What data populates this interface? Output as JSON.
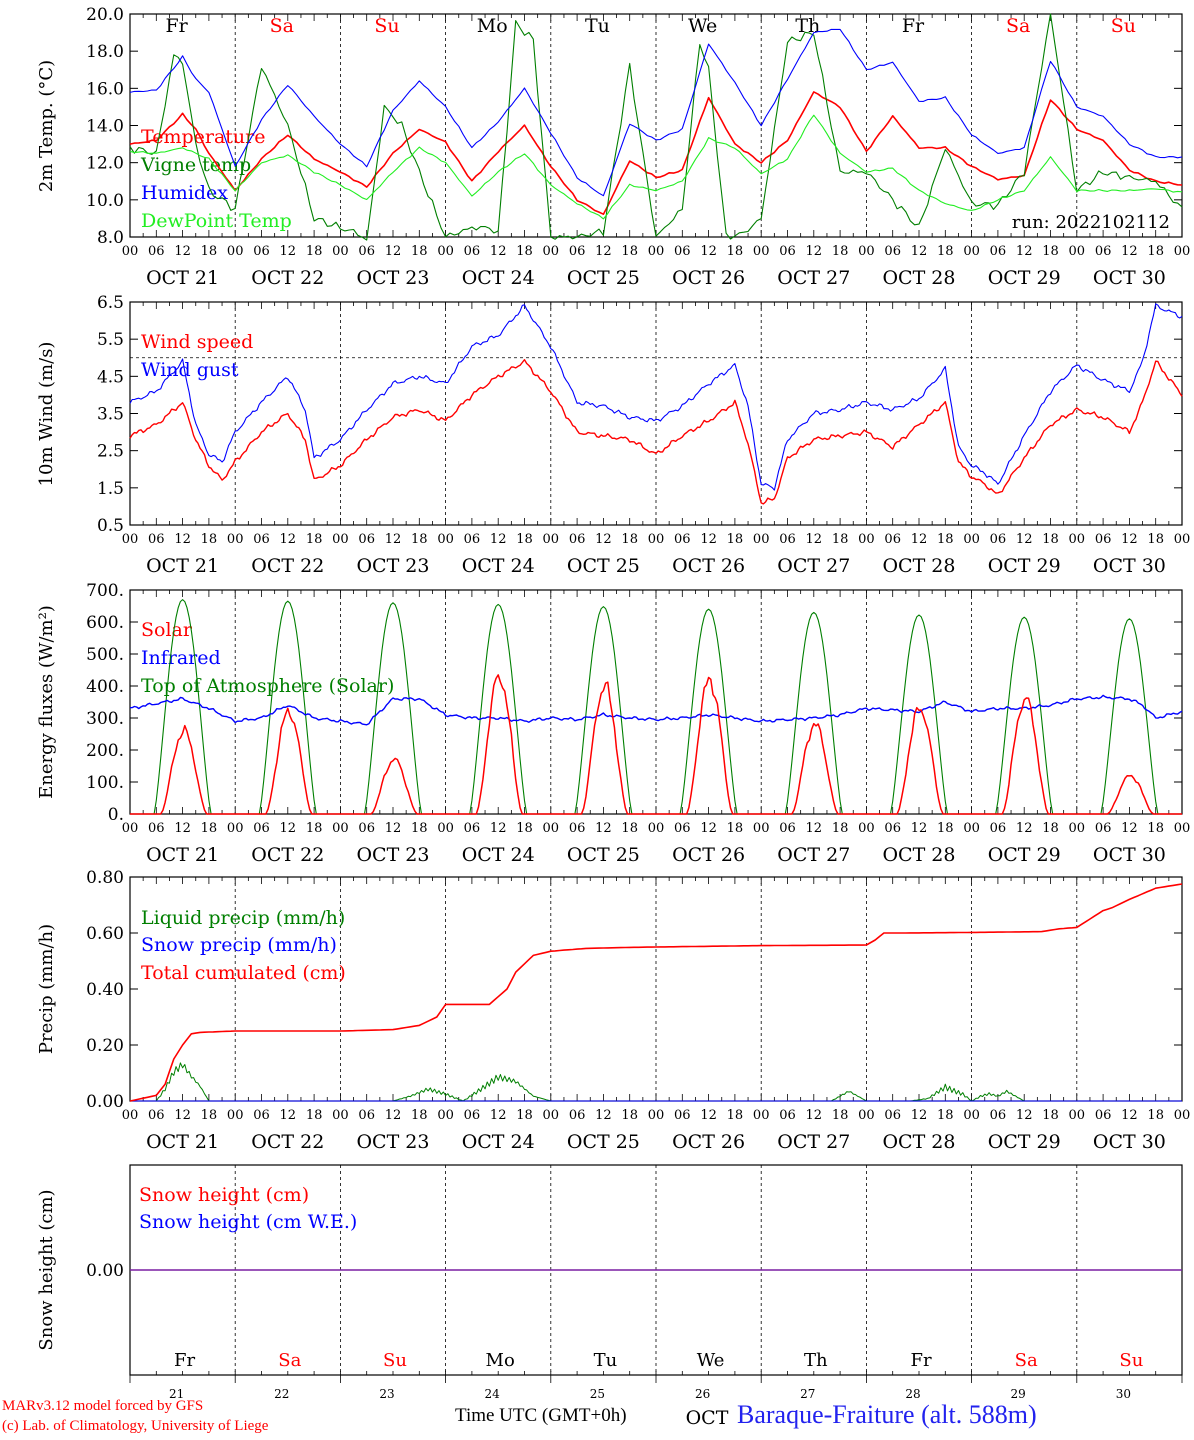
{
  "run_label": "run: 2022102112",
  "footer": {
    "model_credit": "MARv3.12 model forced by GFS",
    "lab_credit": "(c) Lab. of Climatology, University of Liege",
    "x_axis_title": "Time UTC (GMT+0h)",
    "month_label": "OCT",
    "station": "Baraque-Fraiture (alt. 588m)"
  },
  "colors": {
    "red": "#ff0000",
    "green": "#007f00",
    "blue": "#0000ff",
    "light_green": "#22ee22",
    "purple": "#7a1fa2",
    "weekend": "#ff0000",
    "weekday": "#000000"
  },
  "time_axis": {
    "hour_labels": [
      "00",
      "06",
      "12",
      "18"
    ],
    "date_labels": [
      "OCT 21",
      "OCT 22",
      "OCT 23",
      "OCT 24",
      "OCT 25",
      "OCT 26",
      "OCT 27",
      "OCT 28",
      "OCT 29",
      "OCT 30"
    ],
    "day_names": [
      "Fr",
      "Sa",
      "Su",
      "Mo",
      "Tu",
      "We",
      "Th",
      "Fr",
      "Sa",
      "Su"
    ],
    "weekend": [
      false,
      true,
      true,
      false,
      false,
      false,
      false,
      false,
      true,
      true
    ],
    "day_numbers": [
      "21",
      "22",
      "23",
      "24",
      "25",
      "26",
      "27",
      "28",
      "29",
      "30"
    ]
  },
  "chart_data": [
    {
      "type": "line",
      "ylabel": "2m Temp. (°C)",
      "ylim": [
        8.0,
        20.0
      ],
      "yticks": [
        "8.0",
        "10.0",
        "12.0",
        "14.0",
        "16.0",
        "18.0",
        "20.0"
      ],
      "x_unit": "hours since 2022-10-21 00 UTC",
      "series": [
        {
          "name": "Temperature",
          "color": "#ff0000",
          "x": [
            0,
            6,
            12,
            15,
            18,
            24,
            30,
            36,
            42,
            48,
            54,
            60,
            66,
            72,
            78,
            84,
            90,
            96,
            102,
            108,
            114,
            120,
            126,
            132,
            138,
            144,
            150,
            156,
            162,
            168,
            174,
            180,
            186,
            192,
            198,
            204,
            210,
            216,
            222,
            228,
            234,
            240
          ],
          "y": [
            13.0,
            13.2,
            14.6,
            13.8,
            12.5,
            10.5,
            12.2,
            13.5,
            12.2,
            11.5,
            10.7,
            12.5,
            13.8,
            13.1,
            11.0,
            12.6,
            14.0,
            11.8,
            10.0,
            9.2,
            12.1,
            11.2,
            11.6,
            15.5,
            13.0,
            12.0,
            13.2,
            15.8,
            15.0,
            12.6,
            14.5,
            12.8,
            12.8,
            11.8,
            11.1,
            11.3,
            15.4,
            13.8,
            13.2,
            11.6,
            11.0,
            10.8
          ]
        },
        {
          "name": "Vigne temp",
          "color": "#007f00",
          "x": [
            0,
            6,
            10,
            12,
            15,
            18,
            24,
            30,
            36,
            42,
            48,
            52,
            54,
            58,
            62,
            66,
            72,
            78,
            82,
            84,
            88,
            92,
            96,
            102,
            108,
            114,
            116,
            120,
            126,
            130,
            132,
            136,
            140,
            144,
            150,
            156,
            162,
            168,
            174,
            180,
            186,
            192,
            198,
            204,
            210,
            216,
            222,
            228,
            234,
            240
          ],
          "y": [
            12.8,
            12.5,
            17.8,
            17.4,
            13.0,
            10.5,
            9.5,
            17.2,
            14.0,
            9.0,
            8.5,
            8.2,
            7.8,
            15.0,
            14.0,
            11.5,
            8.0,
            8.5,
            8.5,
            8.2,
            19.5,
            18.6,
            8.0,
            8.0,
            8.3,
            17.2,
            14.0,
            8.0,
            9.5,
            18.5,
            17.0,
            8.0,
            8.2,
            9.0,
            18.5,
            19.0,
            11.5,
            11.5,
            10.0,
            8.5,
            12.8,
            9.8,
            9.7,
            11.5,
            20.0,
            10.5,
            11.5,
            11.2,
            11.0,
            9.5
          ]
        },
        {
          "name": "Humidex",
          "color": "#0000ff",
          "x": [
            0,
            6,
            12,
            15,
            18,
            24,
            30,
            36,
            42,
            48,
            54,
            60,
            66,
            72,
            78,
            84,
            90,
            96,
            102,
            108,
            114,
            120,
            126,
            132,
            138,
            144,
            150,
            156,
            162,
            168,
            174,
            180,
            186,
            192,
            198,
            204,
            210,
            216,
            222,
            228,
            234,
            240
          ],
          "y": [
            15.8,
            15.9,
            17.7,
            16.5,
            15.8,
            11.8,
            14.3,
            16.2,
            14.5,
            13.0,
            11.8,
            14.8,
            16.4,
            15.0,
            12.8,
            14.2,
            16.0,
            13.6,
            11.2,
            10.2,
            14.1,
            13.2,
            13.8,
            18.4,
            16.3,
            14.0,
            16.5,
            19.0,
            19.2,
            17.0,
            17.4,
            15.3,
            15.5,
            13.5,
            12.5,
            12.8,
            17.5,
            15.0,
            14.5,
            13.0,
            12.3,
            12.3
          ]
        },
        {
          "name": "DewPoint Temp",
          "color": "#22ee22",
          "x": [
            0,
            6,
            12,
            18,
            24,
            30,
            36,
            42,
            48,
            54,
            60,
            66,
            72,
            78,
            84,
            90,
            96,
            102,
            108,
            114,
            120,
            126,
            132,
            138,
            144,
            150,
            156,
            162,
            168,
            174,
            180,
            186,
            192,
            198,
            204,
            210,
            216,
            222,
            228,
            234,
            240
          ],
          "y": [
            12.6,
            12.5,
            12.8,
            12.2,
            10.5,
            12.0,
            12.4,
            11.5,
            10.8,
            10.0,
            11.5,
            12.8,
            12.0,
            10.2,
            11.5,
            12.5,
            10.8,
            9.8,
            9.0,
            10.8,
            10.5,
            11.0,
            13.3,
            12.8,
            11.4,
            12.2,
            14.6,
            12.5,
            11.5,
            11.7,
            10.5,
            9.8,
            9.4,
            10.0,
            10.5,
            12.3,
            10.5,
            10.5,
            10.5,
            10.6,
            10.4
          ]
        }
      ]
    },
    {
      "type": "line",
      "ylabel": "10m Wind (m/s)",
      "ylim": [
        0.5,
        6.5
      ],
      "yticks": [
        "0.5",
        "1.5",
        "2.5",
        "3.5",
        "4.5",
        "5.5",
        "6.5"
      ],
      "reference_line": 5.0,
      "series": [
        {
          "name": "Wind speed",
          "color": "#ff0000",
          "x": [
            0,
            6,
            12,
            15,
            18,
            21,
            24,
            30,
            36,
            40,
            42,
            48,
            54,
            60,
            66,
            72,
            78,
            84,
            90,
            96,
            102,
            108,
            114,
            120,
            126,
            132,
            138,
            141,
            144,
            147,
            150,
            156,
            162,
            168,
            174,
            180,
            186,
            189,
            192,
            195,
            198,
            204,
            210,
            216,
            222,
            228,
            231,
            234,
            240
          ],
          "y": [
            2.9,
            3.2,
            3.8,
            2.8,
            2.1,
            1.7,
            2.2,
            3.0,
            3.5,
            2.8,
            1.7,
            2.1,
            2.8,
            3.4,
            3.6,
            3.3,
            4.0,
            4.5,
            4.9,
            4.1,
            3.0,
            2.9,
            2.8,
            2.4,
            2.9,
            3.3,
            3.8,
            2.7,
            1.1,
            1.2,
            2.3,
            2.8,
            2.9,
            3.0,
            2.6,
            3.2,
            3.8,
            2.2,
            1.8,
            1.6,
            1.3,
            2.3,
            3.2,
            3.6,
            3.4,
            3.0,
            3.8,
            4.9,
            4.0
          ]
        },
        {
          "name": "Wind gust",
          "color": "#0000ff",
          "x": [
            0,
            6,
            12,
            15,
            18,
            21,
            24,
            30,
            36,
            40,
            42,
            48,
            54,
            60,
            66,
            72,
            78,
            84,
            90,
            96,
            102,
            108,
            114,
            120,
            126,
            132,
            138,
            141,
            144,
            147,
            150,
            156,
            162,
            168,
            174,
            180,
            186,
            189,
            192,
            195,
            198,
            204,
            210,
            216,
            222,
            228,
            231,
            234,
            240
          ],
          "y": [
            3.8,
            4.1,
            4.9,
            3.2,
            2.4,
            2.2,
            3.0,
            3.8,
            4.5,
            3.6,
            2.3,
            2.8,
            3.6,
            4.3,
            4.5,
            4.3,
            5.3,
            5.6,
            6.4,
            5.3,
            3.8,
            3.7,
            3.4,
            3.3,
            3.7,
            4.3,
            4.8,
            3.7,
            1.6,
            1.5,
            2.8,
            3.5,
            3.6,
            3.8,
            3.6,
            3.9,
            4.7,
            2.6,
            2.1,
            1.9,
            1.6,
            2.9,
            4.1,
            4.8,
            4.4,
            4.1,
            4.9,
            6.4,
            6.1
          ]
        }
      ]
    },
    {
      "type": "line",
      "ylabel": "Energy fluxes (W/m²)",
      "ylim": [
        0,
        700
      ],
      "yticks": [
        "0.",
        "100.",
        "200.",
        "300.",
        "400.",
        "500.",
        "600.",
        "700."
      ],
      "series": [
        {
          "name": "Solar",
          "color": "#ff0000",
          "peaks": [
            260,
            320,
            170,
            430,
            400,
            420,
            280,
            330,
            360,
            120
          ]
        },
        {
          "name": "Infrared",
          "color": "#0000ff",
          "x": [
            0,
            6,
            12,
            18,
            24,
            30,
            36,
            42,
            48,
            54,
            60,
            66,
            72,
            78,
            84,
            90,
            96,
            102,
            108,
            114,
            120,
            126,
            132,
            138,
            144,
            150,
            156,
            162,
            168,
            174,
            180,
            186,
            192,
            198,
            204,
            210,
            216,
            222,
            228,
            231,
            234,
            240
          ],
          "y": [
            330,
            345,
            360,
            330,
            290,
            300,
            340,
            300,
            290,
            280,
            360,
            360,
            310,
            300,
            300,
            290,
            300,
            295,
            310,
            300,
            295,
            300,
            310,
            300,
            290,
            295,
            300,
            310,
            330,
            325,
            320,
            350,
            320,
            330,
            330,
            340,
            360,
            365,
            360,
            340,
            300,
            320
          ]
        },
        {
          "name": "Top of Atmosphere (Solar)",
          "color": "#007f00",
          "peaks": [
            670,
            665,
            660,
            655,
            648,
            640,
            630,
            622,
            615,
            610
          ]
        }
      ]
    },
    {
      "type": "line",
      "ylabel": "Precip (mm/h)",
      "ylim": [
        0,
        0.8
      ],
      "yticks": [
        "0.00",
        "0.20",
        "0.40",
        "0.60",
        "0.80"
      ],
      "series": [
        {
          "name": "Liquid precip (mm/h)",
          "color": "#007f00",
          "x": [
            0,
            6,
            8,
            10,
            12,
            14,
            16,
            18,
            24,
            60,
            64,
            68,
            72,
            76,
            80,
            84,
            88,
            92,
            96,
            160,
            164,
            168,
            178,
            182,
            186,
            190,
            192,
            194,
            196,
            198,
            200,
            204,
            240
          ],
          "y": [
            0,
            0,
            0.05,
            0.12,
            0.15,
            0.1,
            0.06,
            0.0,
            0,
            0,
            0.02,
            0.05,
            0.03,
            0,
            0.05,
            0.1,
            0.08,
            0.02,
            0,
            0,
            0.04,
            0,
            0,
            0.01,
            0.06,
            0.03,
            0,
            0.02,
            0.03,
            0.02,
            0.04,
            0.0,
            0
          ]
        },
        {
          "name": "Snow precip (mm/h)",
          "color": "#0000ff",
          "x": [
            0,
            240
          ],
          "y": [
            0,
            0
          ]
        },
        {
          "name": "Total cumulated (cm)",
          "color": "#ff0000",
          "x": [
            0,
            6,
            8,
            10,
            12,
            14,
            16,
            24,
            48,
            60,
            66,
            70,
            72,
            78,
            82,
            86,
            88,
            92,
            96,
            104,
            112,
            120,
            144,
            168,
            170,
            172,
            176,
            192,
            208,
            212,
            216,
            222,
            224,
            228,
            234,
            240
          ],
          "y": [
            0,
            0.02,
            0.06,
            0.15,
            0.2,
            0.24,
            0.245,
            0.25,
            0.25,
            0.255,
            0.27,
            0.3,
            0.345,
            0.345,
            0.345,
            0.4,
            0.46,
            0.52,
            0.535,
            0.545,
            0.548,
            0.55,
            0.555,
            0.557,
            0.575,
            0.6,
            0.6,
            0.602,
            0.605,
            0.615,
            0.62,
            0.68,
            0.69,
            0.72,
            0.76,
            0.775
          ]
        }
      ]
    },
    {
      "type": "line",
      "ylabel": "Snow height (cm)",
      "yticks": [
        "0.00"
      ],
      "series": [
        {
          "name": "Snow height (cm)",
          "color": "#ff0000",
          "x": [
            0,
            240
          ],
          "y": [
            0,
            0
          ]
        },
        {
          "name": "Snow height (cm W.E.)",
          "color": "#0000ff",
          "x": [
            0,
            240
          ],
          "y": [
            0,
            0
          ]
        }
      ]
    }
  ]
}
